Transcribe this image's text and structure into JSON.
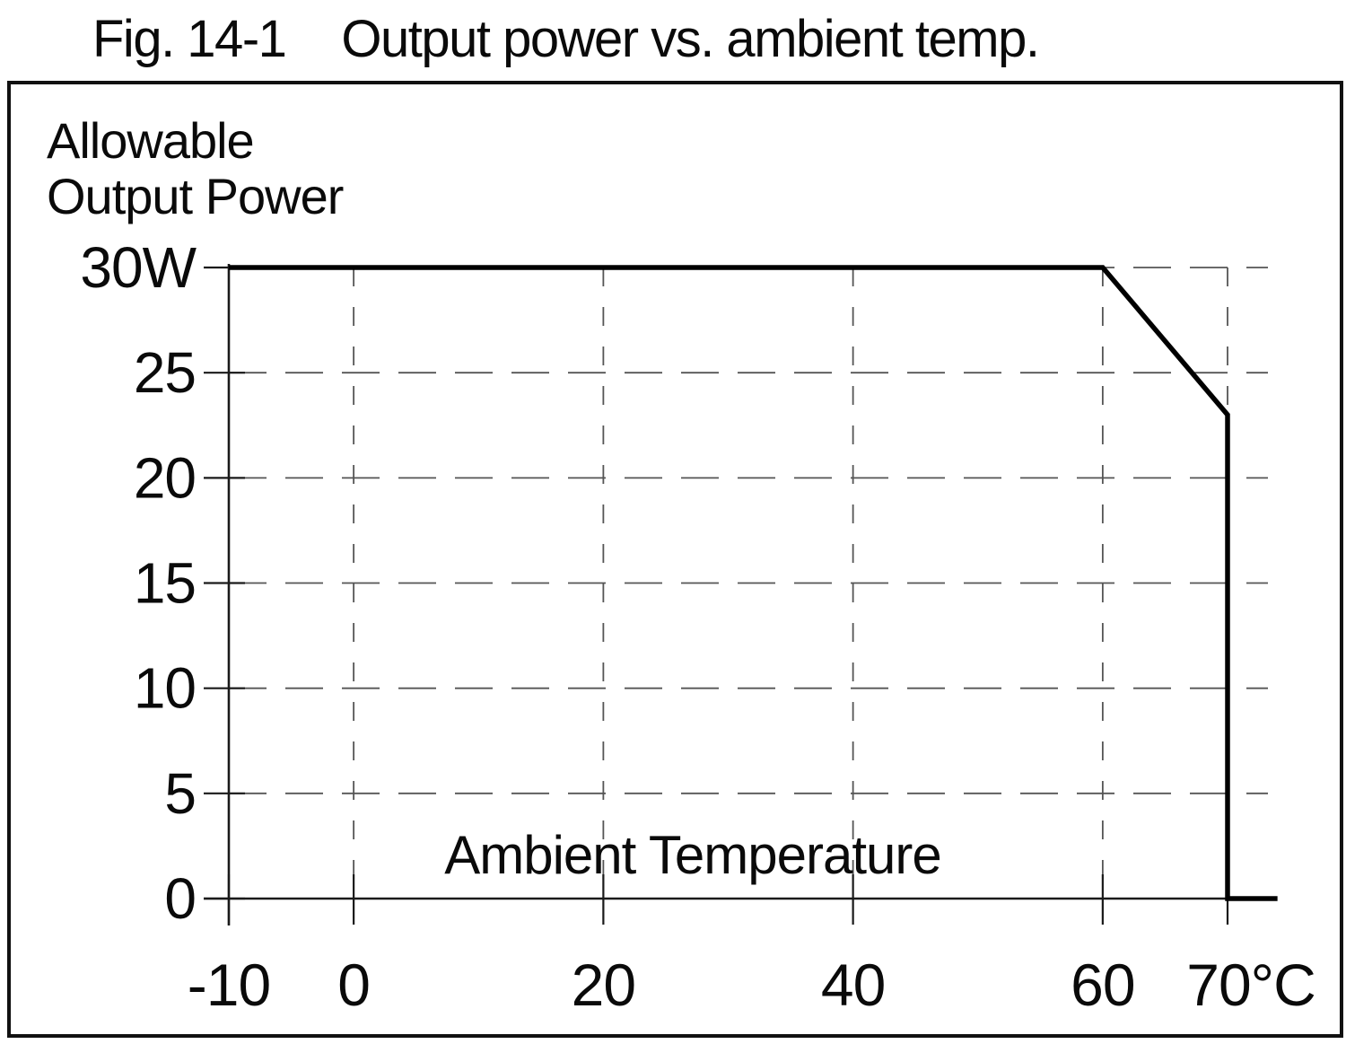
{
  "header": {
    "figure_number": "Fig. 14-1",
    "caption": "Output power vs. ambient temp."
  },
  "colors": {
    "ink": "#0a0a0a",
    "grid": "#555555",
    "background": "#ffffff",
    "curve": "#000000"
  },
  "chart_data": {
    "type": "line",
    "title": "Fig. 14-1 Output power vs. ambient temp.",
    "xlabel": "Ambient Temperature",
    "ylabel": "Allowable Output Power",
    "ylabel_lines": [
      "Allowable",
      "Output Power"
    ],
    "x_unit": "°C",
    "y_unit": "W",
    "xlim": [
      -10,
      74
    ],
    "ylim": [
      0,
      30
    ],
    "grid": "dashed",
    "legend": "none",
    "x_ticks": [
      {
        "value": -10,
        "label": "-10"
      },
      {
        "value": 0,
        "label": "0"
      },
      {
        "value": 20,
        "label": "20"
      },
      {
        "value": 40,
        "label": "40"
      },
      {
        "value": 60,
        "label": "60"
      },
      {
        "value": 70,
        "label": "70°C"
      }
    ],
    "y_ticks": [
      {
        "value": 30,
        "label": "30W"
      },
      {
        "value": 25,
        "label": "25"
      },
      {
        "value": 20,
        "label": "20"
      },
      {
        "value": 15,
        "label": "15"
      },
      {
        "value": 10,
        "label": "10"
      },
      {
        "value": 5,
        "label": "5"
      },
      {
        "value": 0,
        "label": "0"
      }
    ],
    "x_gridlines": [
      0,
      20,
      40,
      60,
      70
    ],
    "y_gridlines": [
      5,
      10,
      15,
      20,
      25,
      30
    ],
    "series": [
      {
        "name": "allowable-output-power",
        "color": "#000000",
        "points": [
          [
            -10,
            30
          ],
          [
            60,
            30
          ],
          [
            70,
            23
          ],
          [
            70,
            0
          ],
          [
            74,
            0
          ]
        ]
      }
    ]
  }
}
